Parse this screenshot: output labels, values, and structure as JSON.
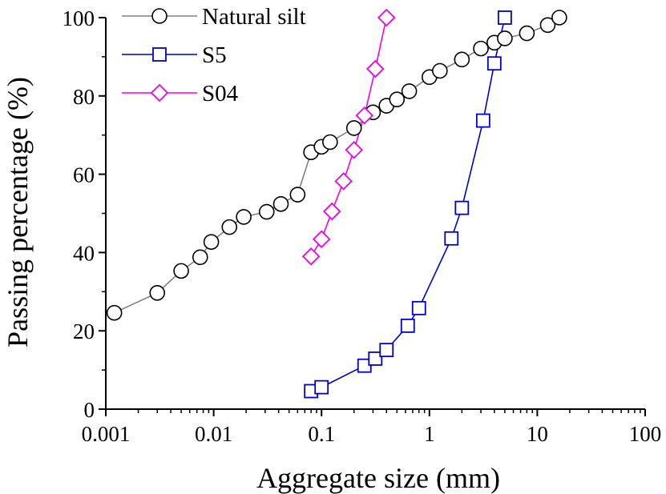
{
  "chart_data": {
    "type": "line",
    "xlabel": "Aggregate size (mm)",
    "ylabel": "Passing percentage (%)",
    "xscale": "log",
    "xlim": [
      0.001,
      100
    ],
    "ylim": [
      0,
      100
    ],
    "x_ticks": [
      0.001,
      0.01,
      0.1,
      1,
      10,
      100
    ],
    "x_tick_labels": [
      "0.001",
      "0.01",
      "0.1",
      "1",
      "10",
      "100"
    ],
    "y_ticks": [
      0,
      20,
      40,
      60,
      80,
      100
    ],
    "y_tick_labels": [
      "0",
      "20",
      "40",
      "60",
      "80",
      "100"
    ],
    "grid": false,
    "legend_position": "top-left",
    "series": [
      {
        "name": "Natural silt",
        "color": "#808080",
        "marker": "circle",
        "x": [
          0.0012,
          0.003,
          0.005,
          0.0075,
          0.0095,
          0.014,
          0.019,
          0.031,
          0.042,
          0.06,
          0.08,
          0.1,
          0.12,
          0.2,
          0.3,
          0.4,
          0.5,
          0.65,
          1.0,
          1.25,
          2.0,
          3.0,
          4.0,
          5.0,
          8.0,
          12.5,
          16.0
        ],
        "y": [
          24.6,
          29.7,
          35.3,
          38.8,
          42.7,
          46.5,
          49.1,
          50.4,
          52.4,
          54.8,
          65.6,
          67.0,
          68.2,
          71.8,
          75.8,
          77.5,
          79.1,
          81.2,
          84.8,
          86.4,
          89.3,
          92.1,
          93.6,
          94.7,
          96.0,
          98.1,
          100.0
        ]
      },
      {
        "name": "S5",
        "color": "#0000cc",
        "marker": "square",
        "x": [
          0.08,
          0.1,
          0.25,
          0.315,
          0.4,
          0.63,
          0.8,
          1.6,
          2.0,
          3.15,
          4.0,
          5.0
        ],
        "y": [
          4.6,
          5.6,
          11.1,
          12.9,
          15.1,
          21.3,
          25.8,
          43.6,
          51.4,
          73.7,
          88.3,
          100.0
        ]
      },
      {
        "name": "S04",
        "color": "#ee00ee",
        "marker": "diamond",
        "x": [
          0.08,
          0.1,
          0.125,
          0.16,
          0.2,
          0.25,
          0.315,
          0.4
        ],
        "y": [
          39.0,
          43.4,
          50.5,
          58.2,
          66.2,
          75.0,
          86.9,
          100.0
        ]
      }
    ]
  }
}
